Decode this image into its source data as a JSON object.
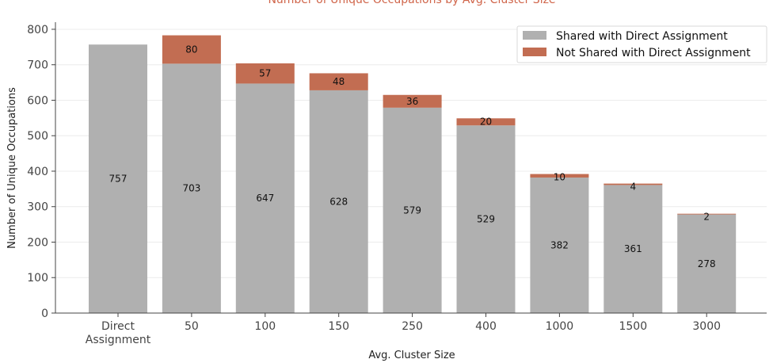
{
  "chart_data": {
    "type": "bar",
    "stacked": true,
    "title": "Number of Unique Occupations by Avg. Cluster Size",
    "xlabel": "Avg. Cluster Size",
    "ylabel": "Number of Unique Occupations",
    "categories": [
      [
        "Direct",
        "Assignment"
      ],
      [
        "50"
      ],
      [
        "100"
      ],
      [
        "150"
      ],
      [
        "250"
      ],
      [
        "400"
      ],
      [
        "1000"
      ],
      [
        "1500"
      ],
      [
        "3000"
      ]
    ],
    "series": [
      {
        "name": "Shared with Direct Assignment",
        "color": "#b0b0b0",
        "values": [
          757,
          703,
          647,
          628,
          579,
          529,
          382,
          361,
          278
        ]
      },
      {
        "name": "Not Shared with Direct Assignment",
        "color": "#c26d52",
        "values": [
          null,
          80,
          57,
          48,
          36,
          20,
          10,
          4,
          2
        ]
      }
    ],
    "ylim": [
      0,
      820
    ],
    "yticks": [
      0,
      100,
      200,
      300,
      400,
      500,
      600,
      700,
      800
    ],
    "grid": "horizontal",
    "legend": "top-right"
  }
}
